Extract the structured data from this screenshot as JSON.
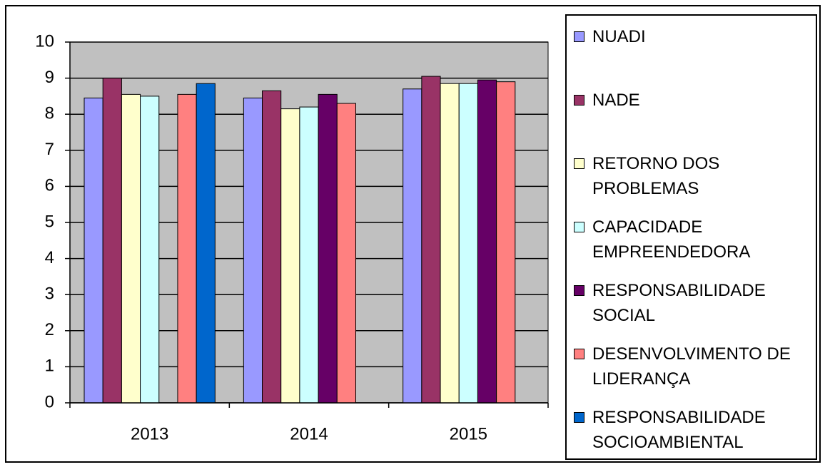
{
  "chart_data": {
    "type": "bar",
    "categories": [
      "2013",
      "2014",
      "2015"
    ],
    "series": [
      {
        "name": "NUADI",
        "color": "#9999ff",
        "values": [
          8.45,
          8.45,
          8.7
        ]
      },
      {
        "name": "NADE",
        "color": "#993366",
        "values": [
          9.0,
          8.65,
          9.05
        ]
      },
      {
        "name": "RETORNO DOS PROBLEMAS",
        "color": "#ffffcc",
        "values": [
          8.55,
          8.15,
          8.85
        ]
      },
      {
        "name": "CAPACIDADE EMPREENDEDORA",
        "color": "#ccffff",
        "values": [
          8.5,
          8.2,
          8.85
        ]
      },
      {
        "name": "RESPONSABILIDADE SOCIAL",
        "color": "#660066",
        "values": [
          null,
          8.55,
          8.95
        ]
      },
      {
        "name": "DESENVOLVIMENTO DE LIDERANÇA",
        "color": "#ff8080",
        "values": [
          8.55,
          8.3,
          8.9
        ]
      },
      {
        "name": "RESPONSABILIDADE SOCIOAMBIENTAL",
        "color": "#0066cc",
        "values": [
          8.85,
          null,
          null
        ]
      }
    ],
    "ylim": [
      0,
      10
    ],
    "yticks": [
      0,
      1,
      2,
      3,
      4,
      5,
      6,
      7,
      8,
      9,
      10
    ],
    "grid": true,
    "plot_background": "#c0c0c0",
    "legend": "right"
  }
}
